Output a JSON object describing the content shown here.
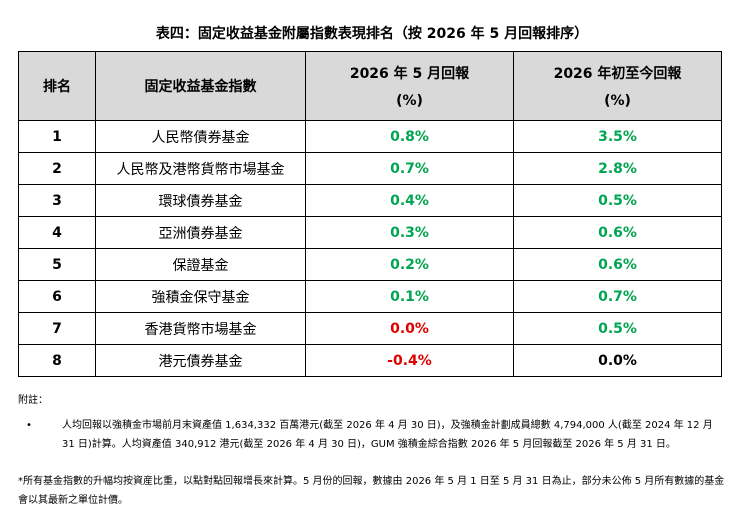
{
  "title": "表四：固定收益基金附屬指數表現排名（按 2026 年 5 月回報排序）",
  "table": {
    "headers": {
      "rank": "排名",
      "fund": "固定收益基金指數",
      "may_return_line1": "2026 年 5 月回報",
      "may_return_line2": "(%)",
      "ytd_return_line1": "2026 年初至今回報",
      "ytd_return_line2": "(%)"
    },
    "rows": [
      {
        "rank": "1",
        "fund": "人民幣債券基金",
        "may": "0.8%",
        "ytd": "3.5%",
        "may_sign": "pos",
        "ytd_sign": "pos"
      },
      {
        "rank": "2",
        "fund": "人民幣及港幣貨幣市場基金",
        "may": "0.7%",
        "ytd": "2.8%",
        "may_sign": "pos",
        "ytd_sign": "pos"
      },
      {
        "rank": "3",
        "fund": "環球債券基金",
        "may": "0.4%",
        "ytd": "0.5%",
        "may_sign": "pos",
        "ytd_sign": "pos"
      },
      {
        "rank": "4",
        "fund": "亞洲債券基金",
        "may": "0.3%",
        "ytd": "0.6%",
        "may_sign": "pos",
        "ytd_sign": "pos"
      },
      {
        "rank": "5",
        "fund": "保證基金",
        "may": "0.2%",
        "ytd": "0.6%",
        "may_sign": "pos",
        "ytd_sign": "pos"
      },
      {
        "rank": "6",
        "fund": "強積金保守基金",
        "may": "0.1%",
        "ytd": "0.7%",
        "may_sign": "pos",
        "ytd_sign": "pos"
      },
      {
        "rank": "7",
        "fund": "香港貨幣市場基金",
        "may": "0.0%",
        "ytd": "0.5%",
        "may_sign": "neg",
        "ytd_sign": "pos"
      },
      {
        "rank": "8",
        "fund": "港元債券基金",
        "may": "-0.4%",
        "ytd": "0.0%",
        "may_sign": "neg",
        "ytd_sign": "zero"
      }
    ]
  },
  "notes": {
    "header": "附註：",
    "bullet_symbol": "•",
    "bullet_text": "人均回報以強積金市場前月末資產值 1,634,332 百萬港元(截至 2026 年 4 月 30 日)，及強積金計劃成員總數 4,794,000 人(截至 2024 年 12 月 31 日)計算。人均資產值 340,912 港元(截至 2026 年 4 月 30 日)，GUM 強積金綜合指數 2026 年 5 月回報截至 2026 年 5 月 31 日。",
    "footnote": "*所有基金指數的升幅均按資産比重，以點對點回報增長來計算。5 月份的回報，數據由 2026 年 5 月 1 日至 5 月 31 日為止，部分未公佈 5 月所有數據的基金會以其最新之單位計價。"
  },
  "colors": {
    "positive": "#00a651",
    "negative": "#e00000",
    "header_bg": "#d9d9d9"
  }
}
